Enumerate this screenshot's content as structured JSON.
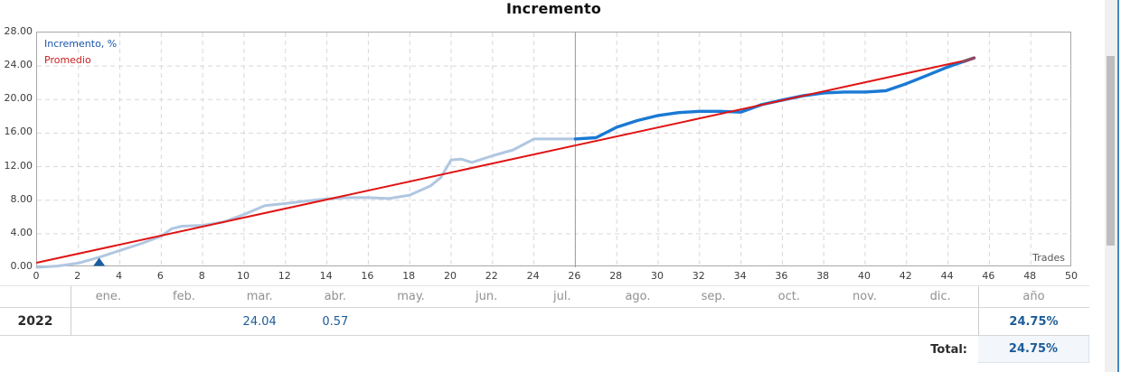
{
  "title": "Incremento",
  "chart": {
    "legend": [
      {
        "label": "Incremento, %",
        "color": "#1a55ad"
      },
      {
        "label": "Promedio",
        "color": "#cc1d1d"
      }
    ]
  },
  "chart_data": {
    "type": "line",
    "title": "Incremento",
    "xlabel": "Trades",
    "ylabel": "Incremento, %",
    "xlim": [
      0,
      50
    ],
    "ylim": [
      0,
      28
    ],
    "x_tick_step": 2,
    "y_tick_step": 4,
    "grid": true,
    "legend_position": "top-left",
    "vline_x": 26,
    "series": [
      {
        "name": "Incremento, % (historial)",
        "color": "#b0c7e1",
        "width": 3,
        "x": [
          0,
          1,
          2,
          3,
          4,
          5,
          6,
          6.5,
          7,
          8,
          9,
          10,
          11,
          12,
          13,
          14,
          15,
          16,
          17,
          18,
          19,
          19.5,
          20,
          20.5,
          21,
          22,
          23,
          24,
          25,
          26
        ],
        "y": [
          0,
          0.15,
          0.5,
          1.2,
          2.0,
          2.8,
          3.7,
          4.6,
          4.9,
          5.0,
          5.4,
          6.3,
          7.35,
          7.6,
          7.9,
          8.15,
          8.3,
          8.3,
          8.2,
          8.6,
          9.7,
          10.7,
          12.8,
          12.9,
          12.5,
          13.3,
          14.0,
          15.3,
          15.3,
          15.3
        ]
      },
      {
        "name": "Incremento, %",
        "color": "#1a79d4",
        "width": 3.4,
        "x": [
          26,
          27,
          28,
          29,
          30,
          31,
          32,
          33,
          34,
          35,
          36,
          37,
          38,
          39,
          40,
          41,
          42,
          43,
          44,
          45
        ],
        "y": [
          15.3,
          15.45,
          16.7,
          17.5,
          18.1,
          18.45,
          18.6,
          18.6,
          18.5,
          19.4,
          19.95,
          20.45,
          20.8,
          20.9,
          20.9,
          21.05,
          21.9,
          22.9,
          23.9,
          24.75
        ]
      },
      {
        "name": "Promedio",
        "color": "#e01414",
        "width": 2,
        "x": [
          0,
          45
        ],
        "y": [
          0.55,
          24.75
        ]
      }
    ],
    "markers": [
      {
        "name": "deposit-marker",
        "shape": "triangle-up",
        "x": 3,
        "y": 0,
        "color": "#1b5e9e"
      },
      {
        "name": "end-marker",
        "shape": "tick",
        "x": 45,
        "y": 24.75,
        "color": "#8c4a63"
      }
    ]
  },
  "table": {
    "month_columns": [
      "ene.",
      "feb.",
      "mar.",
      "abr.",
      "may.",
      "jun.",
      "jul.",
      "ago.",
      "sep.",
      "oct.",
      "nov.",
      "dic."
    ],
    "year_column": "año",
    "rows": [
      {
        "year": "2022",
        "monthly": {
          "mar.": "24.04",
          "abr.": "0.57"
        },
        "year_total": "24.75%"
      }
    ],
    "total_label": "Total:",
    "total_value": "24.75%"
  }
}
